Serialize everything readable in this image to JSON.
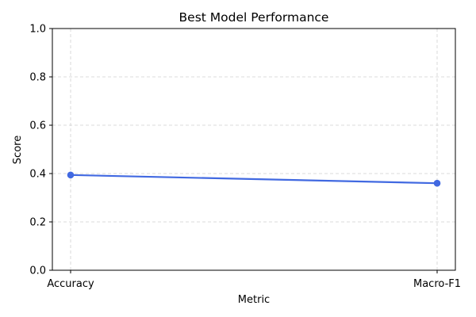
{
  "chart_data": {
    "type": "line",
    "title": "Best Model Performance",
    "xlabel": "Metric",
    "ylabel": "Score",
    "categories": [
      "Accuracy",
      "Macro-F1"
    ],
    "series": [
      {
        "values": [
          0.394,
          0.36
        ],
        "color": "#4169e1",
        "marker": "circle"
      }
    ],
    "ylim": [
      0.0,
      1.0
    ],
    "yticks": [
      "0.0",
      "0.2",
      "0.4",
      "0.6",
      "0.8",
      "1.0"
    ],
    "grid": true
  }
}
